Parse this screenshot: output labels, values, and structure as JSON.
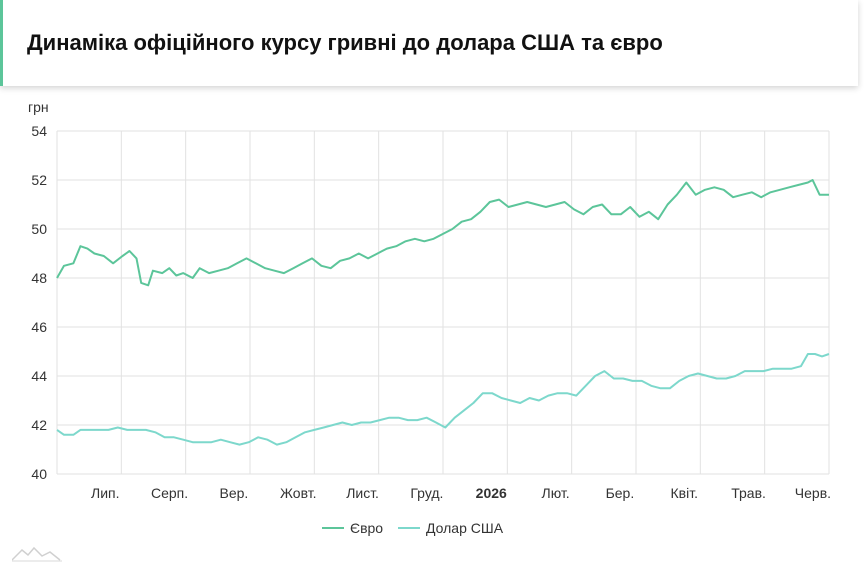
{
  "header": {
    "title": "Динаміка офіційного курсу гривні до долара США та євро"
  },
  "chart_data": {
    "type": "line",
    "ylabel": "грн",
    "ylim": [
      40,
      54
    ],
    "yticks": [
      40,
      42,
      44,
      46,
      48,
      50,
      52,
      54
    ],
    "x_labels": [
      {
        "label": "Лип.",
        "bold": false
      },
      {
        "label": "Серп.",
        "bold": false
      },
      {
        "label": "Вер.",
        "bold": false
      },
      {
        "label": "Жовт.",
        "bold": false
      },
      {
        "label": "Лист.",
        "bold": false
      },
      {
        "label": "Груд.",
        "bold": false
      },
      {
        "label": "2026",
        "bold": true
      },
      {
        "label": "Лют.",
        "bold": false
      },
      {
        "label": "Бер.",
        "bold": false
      },
      {
        "label": "Квіт.",
        "bold": false
      },
      {
        "label": "Трав.",
        "bold": false
      },
      {
        "label": "Черв.",
        "bold": false
      }
    ],
    "grid": true,
    "legend_position": "bottom",
    "series": [
      {
        "name": "Євро",
        "color": "#5cc59a",
        "points": [
          [
            0,
            48.0
          ],
          [
            0.3,
            48.5
          ],
          [
            0.7,
            48.6
          ],
          [
            1,
            49.3
          ],
          [
            1.3,
            49.2
          ],
          [
            1.6,
            49.0
          ],
          [
            2,
            48.9
          ],
          [
            2.4,
            48.6
          ],
          [
            2.8,
            48.9
          ],
          [
            3.1,
            49.1
          ],
          [
            3.4,
            48.8
          ],
          [
            3.6,
            47.8
          ],
          [
            3.9,
            47.7
          ],
          [
            4.1,
            48.3
          ],
          [
            4.5,
            48.2
          ],
          [
            4.8,
            48.4
          ],
          [
            5.1,
            48.1
          ],
          [
            5.4,
            48.2
          ],
          [
            5.8,
            48.0
          ],
          [
            6.1,
            48.4
          ],
          [
            6.5,
            48.2
          ],
          [
            6.9,
            48.3
          ],
          [
            7.3,
            48.4
          ],
          [
            7.7,
            48.6
          ],
          [
            8.1,
            48.8
          ],
          [
            8.5,
            48.6
          ],
          [
            8.9,
            48.4
          ],
          [
            9.3,
            48.3
          ],
          [
            9.7,
            48.2
          ],
          [
            10.1,
            48.4
          ],
          [
            10.5,
            48.6
          ],
          [
            10.9,
            48.8
          ],
          [
            11.3,
            48.5
          ],
          [
            11.7,
            48.4
          ],
          [
            12.1,
            48.7
          ],
          [
            12.5,
            48.8
          ],
          [
            12.9,
            49.0
          ],
          [
            13.3,
            48.8
          ],
          [
            13.7,
            49.0
          ],
          [
            14.1,
            49.2
          ],
          [
            14.5,
            49.3
          ],
          [
            14.9,
            49.5
          ],
          [
            15.3,
            49.6
          ],
          [
            15.7,
            49.5
          ],
          [
            16.1,
            49.6
          ],
          [
            16.5,
            49.8
          ],
          [
            16.9,
            50.0
          ],
          [
            17.3,
            50.3
          ],
          [
            17.7,
            50.4
          ],
          [
            18.1,
            50.7
          ],
          [
            18.5,
            51.1
          ],
          [
            18.9,
            51.2
          ],
          [
            19.3,
            50.9
          ],
          [
            19.7,
            51.0
          ],
          [
            20.1,
            51.1
          ],
          [
            20.5,
            51.0
          ],
          [
            20.9,
            50.9
          ],
          [
            21.3,
            51.0
          ],
          [
            21.7,
            51.1
          ],
          [
            22.1,
            50.8
          ],
          [
            22.5,
            50.6
          ],
          [
            22.9,
            50.9
          ],
          [
            23.3,
            51.0
          ],
          [
            23.7,
            50.6
          ],
          [
            24.1,
            50.6
          ],
          [
            24.5,
            50.9
          ],
          [
            24.9,
            50.5
          ],
          [
            25.3,
            50.7
          ],
          [
            25.7,
            50.4
          ],
          [
            26.1,
            51.0
          ],
          [
            26.5,
            51.4
          ],
          [
            26.9,
            51.9
          ],
          [
            27.3,
            51.4
          ],
          [
            27.7,
            51.6
          ],
          [
            28.1,
            51.7
          ],
          [
            28.5,
            51.6
          ],
          [
            28.9,
            51.3
          ],
          [
            29.3,
            51.4
          ],
          [
            29.7,
            51.5
          ],
          [
            30.1,
            51.3
          ],
          [
            30.5,
            51.5
          ],
          [
            30.9,
            51.6
          ],
          [
            31.3,
            51.7
          ],
          [
            31.7,
            51.8
          ],
          [
            32.1,
            51.9
          ],
          [
            32.3,
            52.0
          ],
          [
            32.6,
            51.4
          ],
          [
            33,
            51.4
          ]
        ]
      },
      {
        "name": "Долар США",
        "color": "#7dd8cc",
        "points": [
          [
            0,
            41.8
          ],
          [
            0.3,
            41.6
          ],
          [
            0.7,
            41.6
          ],
          [
            1,
            41.8
          ],
          [
            1.4,
            41.8
          ],
          [
            1.8,
            41.8
          ],
          [
            2.2,
            41.8
          ],
          [
            2.6,
            41.9
          ],
          [
            3,
            41.8
          ],
          [
            3.4,
            41.8
          ],
          [
            3.8,
            41.8
          ],
          [
            4.2,
            41.7
          ],
          [
            4.6,
            41.5
          ],
          [
            5,
            41.5
          ],
          [
            5.4,
            41.4
          ],
          [
            5.8,
            41.3
          ],
          [
            6.2,
            41.3
          ],
          [
            6.6,
            41.3
          ],
          [
            7,
            41.4
          ],
          [
            7.4,
            41.3
          ],
          [
            7.8,
            41.2
          ],
          [
            8.2,
            41.3
          ],
          [
            8.6,
            41.5
          ],
          [
            9,
            41.4
          ],
          [
            9.4,
            41.2
          ],
          [
            9.8,
            41.3
          ],
          [
            10.2,
            41.5
          ],
          [
            10.6,
            41.7
          ],
          [
            11,
            41.8
          ],
          [
            11.4,
            41.9
          ],
          [
            11.8,
            42.0
          ],
          [
            12.2,
            42.1
          ],
          [
            12.6,
            42.0
          ],
          [
            13,
            42.1
          ],
          [
            13.4,
            42.1
          ],
          [
            13.8,
            42.2
          ],
          [
            14.2,
            42.3
          ],
          [
            14.6,
            42.3
          ],
          [
            15,
            42.2
          ],
          [
            15.4,
            42.2
          ],
          [
            15.8,
            42.3
          ],
          [
            16.2,
            42.1
          ],
          [
            16.6,
            41.9
          ],
          [
            17,
            42.3
          ],
          [
            17.4,
            42.6
          ],
          [
            17.8,
            42.9
          ],
          [
            18.2,
            43.3
          ],
          [
            18.6,
            43.3
          ],
          [
            19,
            43.1
          ],
          [
            19.4,
            43.0
          ],
          [
            19.8,
            42.9
          ],
          [
            20.2,
            43.1
          ],
          [
            20.6,
            43.0
          ],
          [
            21,
            43.2
          ],
          [
            21.4,
            43.3
          ],
          [
            21.8,
            43.3
          ],
          [
            22.2,
            43.2
          ],
          [
            22.6,
            43.6
          ],
          [
            23,
            44.0
          ],
          [
            23.4,
            44.2
          ],
          [
            23.8,
            43.9
          ],
          [
            24.2,
            43.9
          ],
          [
            24.6,
            43.8
          ],
          [
            25,
            43.8
          ],
          [
            25.4,
            43.6
          ],
          [
            25.8,
            43.5
          ],
          [
            26.2,
            43.5
          ],
          [
            26.6,
            43.8
          ],
          [
            27,
            44.0
          ],
          [
            27.4,
            44.1
          ],
          [
            27.8,
            44.0
          ],
          [
            28.2,
            43.9
          ],
          [
            28.6,
            43.9
          ],
          [
            29,
            44.0
          ],
          [
            29.4,
            44.2
          ],
          [
            29.8,
            44.2
          ],
          [
            30.2,
            44.2
          ],
          [
            30.6,
            44.3
          ],
          [
            31,
            44.3
          ],
          [
            31.4,
            44.3
          ],
          [
            31.8,
            44.4
          ],
          [
            32.1,
            44.9
          ],
          [
            32.4,
            44.9
          ],
          [
            32.7,
            44.8
          ],
          [
            33,
            44.9
          ]
        ]
      }
    ]
  }
}
